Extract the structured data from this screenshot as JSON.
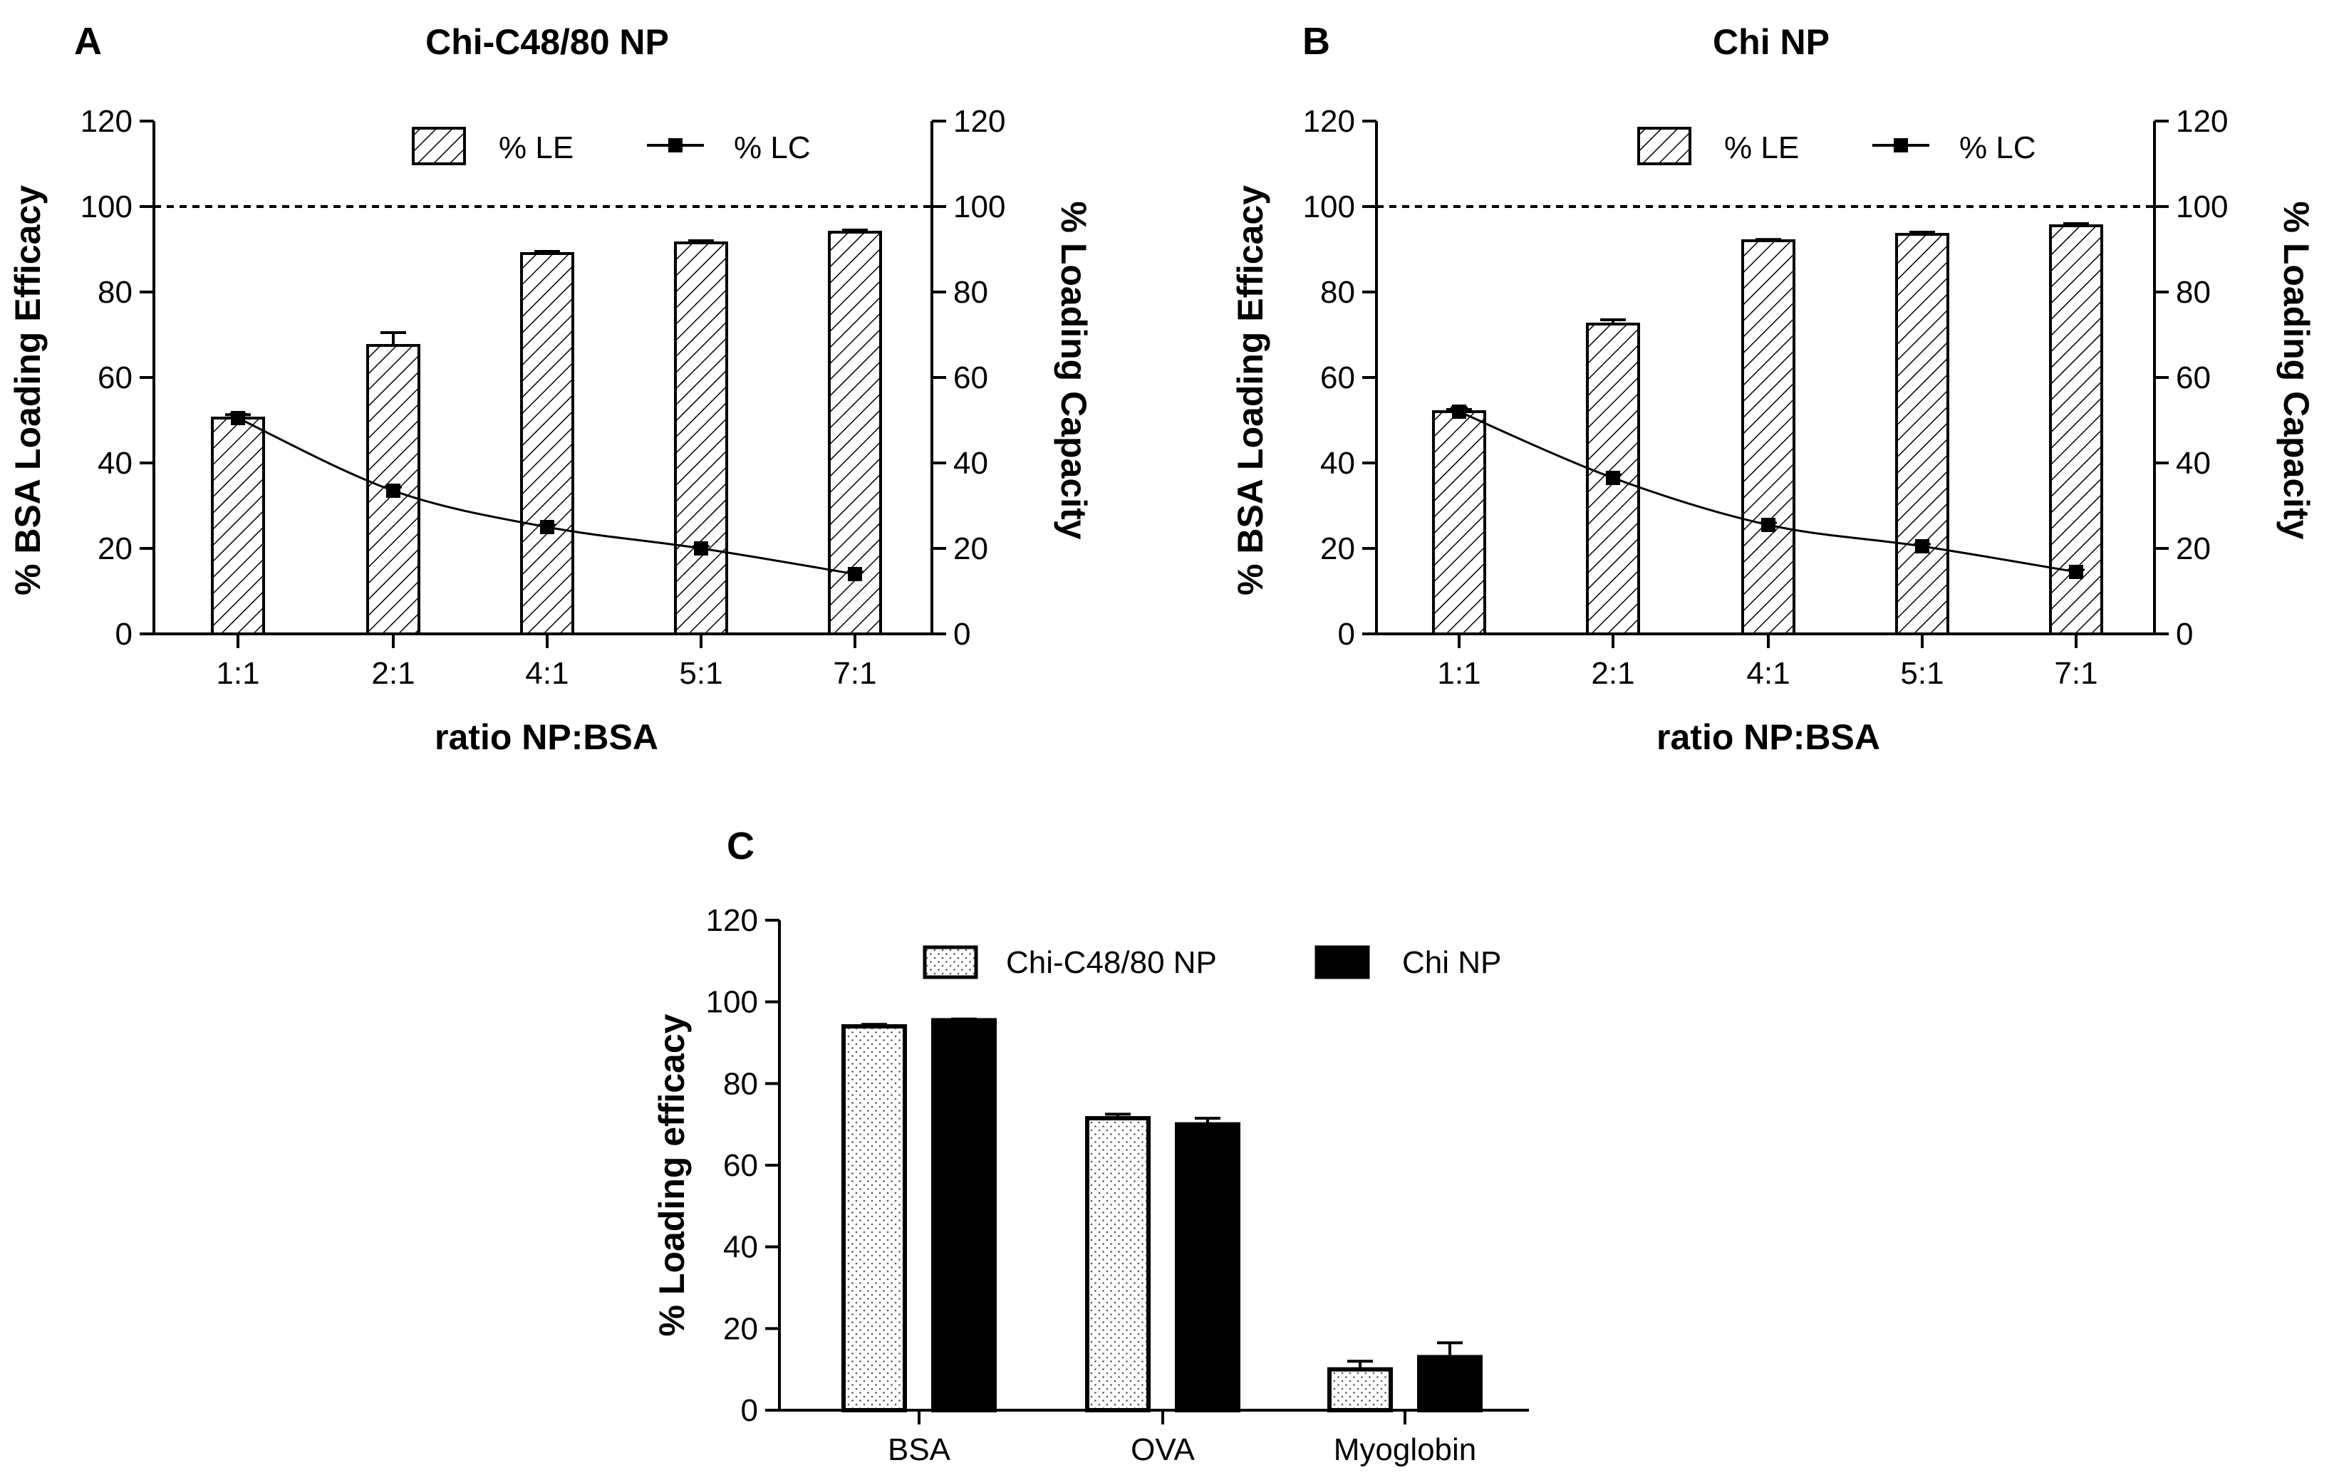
{
  "chart_data": [
    {
      "type": "bar",
      "panel": "A",
      "title": "Chi-C48/80 NP",
      "categories": [
        "1:1",
        "2:1",
        "4:1",
        "5:1",
        "7:1"
      ],
      "series": [
        {
          "name": "% LE",
          "kind": "bar",
          "pattern": "hatch",
          "values": [
            50.5,
            67.5,
            89,
            91.5,
            94
          ],
          "errors": [
            0.8,
            3,
            0.5,
            0.5,
            0.5
          ]
        },
        {
          "name": "% LC",
          "kind": "line",
          "axis": "right",
          "values": [
            50.5,
            33.5,
            25,
            20,
            14
          ],
          "errors": [
            1,
            0.8,
            0.5,
            0.5,
            0.5
          ]
        }
      ],
      "xlabel": "ratio NP:BSA",
      "ylabel": "% BSA Loading Efficacy",
      "ylabel_right": "% Loading Capacity",
      "ylim": [
        0,
        120
      ],
      "yticks": [
        "0",
        "20",
        "40",
        "60",
        "80",
        "100",
        "120"
      ],
      "ref_line": 100,
      "legend_position": "top"
    },
    {
      "type": "bar",
      "panel": "B",
      "title": "Chi NP",
      "categories": [
        "1:1",
        "2:1",
        "4:1",
        "5:1",
        "7:1"
      ],
      "series": [
        {
          "name": "% LE",
          "kind": "bar",
          "pattern": "hatch",
          "values": [
            52,
            72.5,
            92,
            93.5,
            95.5
          ],
          "errors": [
            0.5,
            1,
            0.3,
            0.5,
            0.5
          ]
        },
        {
          "name": "% LC",
          "kind": "line",
          "axis": "right",
          "values": [
            52,
            36.5,
            25.5,
            20.5,
            14.5
          ],
          "errors": [
            1,
            0.8,
            0.5,
            0.5,
            0.5
          ]
        }
      ],
      "xlabel": "ratio NP:BSA",
      "ylabel": "% BSA Loading Efficacy",
      "ylabel_right": "% Loading Capacity",
      "ylim": [
        0,
        120
      ],
      "yticks": [
        "0",
        "20",
        "40",
        "60",
        "80",
        "100",
        "120"
      ],
      "ref_line": 100,
      "legend_position": "top"
    },
    {
      "type": "bar",
      "panel": "C",
      "title": "",
      "categories": [
        "BSA",
        "OVA",
        "Myoglobin"
      ],
      "series": [
        {
          "name": "Chi-C48/80 NP",
          "kind": "bar",
          "pattern": "dots",
          "values": [
            94,
            71.5,
            10
          ],
          "errors": [
            0.5,
            1,
            2
          ]
        },
        {
          "name": "Chi NP",
          "kind": "bar",
          "pattern": "solid",
          "values": [
            95.5,
            70,
            13
          ],
          "errors": [
            0.3,
            1.5,
            3.5
          ]
        }
      ],
      "xlabel": "",
      "ylabel": "% Loading efficacy",
      "ylim": [
        0,
        120
      ],
      "yticks": [
        "0",
        "20",
        "40",
        "60",
        "80",
        "100",
        "120"
      ],
      "legend_position": "top"
    }
  ]
}
